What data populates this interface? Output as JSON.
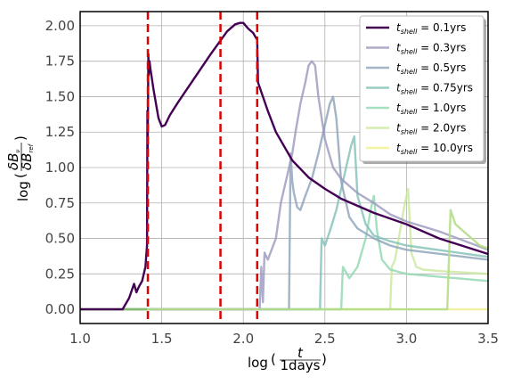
{
  "chart_data": {
    "type": "line",
    "title": "",
    "xlabel_main": "log",
    "xlabel_frac_num": "t",
    "xlabel_frac_den": "1days",
    "ylabel_main": "log",
    "ylabel_frac_num": "δB",
    "ylabel_frac_num_sub": "ν",
    "ylabel_frac_den": "δB",
    "ylabel_frac_den_sub": "ref",
    "xlim": [
      1.0,
      3.5
    ],
    "ylim": [
      -0.1,
      2.1
    ],
    "xticks": [
      1.0,
      1.5,
      2.0,
      2.5,
      3.0,
      3.5
    ],
    "yticks": [
      0.0,
      0.25,
      0.5,
      0.75,
      1.0,
      1.25,
      1.5,
      1.75,
      2.0
    ],
    "xtick_labels": [
      "1.0",
      "1.5",
      "2.0",
      "2.5",
      "3.0",
      "3.5"
    ],
    "ytick_labels": [
      "0.00",
      "0.25",
      "0.50",
      "0.75",
      "1.00",
      "1.25",
      "1.50",
      "1.75",
      "2.00"
    ],
    "grid": true,
    "legend_position": "top-right",
    "vlines": {
      "color": "#e00000",
      "style": "dashed",
      "x": [
        1.415,
        1.86,
        2.085
      ]
    },
    "legend_prefix": "t",
    "legend_sub": "shell",
    "series": [
      {
        "name": "= 0.1yrs",
        "color": "#440154",
        "opacity": 1.0,
        "x": [
          1.0,
          1.26,
          1.3,
          1.33,
          1.345,
          1.36,
          1.38,
          1.4,
          1.41,
          1.412,
          1.414,
          1.418,
          1.42,
          1.425,
          1.43,
          1.45,
          1.48,
          1.5,
          1.52,
          1.55,
          1.6,
          1.7,
          1.8,
          1.9,
          1.95,
          1.98,
          2.0,
          2.03,
          2.06,
          2.085,
          2.09,
          2.15,
          2.2,
          2.3,
          2.4,
          2.5,
          2.6,
          2.8,
          3.0,
          3.2,
          3.5
        ],
        "y": [
          0.0,
          0.0,
          0.08,
          0.18,
          0.12,
          0.16,
          0.2,
          0.3,
          0.45,
          1.4,
          1.1,
          1.8,
          1.65,
          1.75,
          1.7,
          1.55,
          1.35,
          1.29,
          1.3,
          1.37,
          1.46,
          1.63,
          1.8,
          1.96,
          2.01,
          2.02,
          2.02,
          1.98,
          1.95,
          1.9,
          1.6,
          1.4,
          1.25,
          1.05,
          0.93,
          0.85,
          0.78,
          0.68,
          0.6,
          0.5,
          0.39
        ]
      },
      {
        "name": "= 0.3yrs",
        "color": "#9a97bd",
        "opacity": 0.8,
        "x": [
          1.0,
          2.1,
          2.11,
          2.12,
          2.13,
          2.15,
          2.2,
          2.23,
          2.25,
          2.27,
          2.3,
          2.32,
          2.35,
          2.38,
          2.4,
          2.42,
          2.44,
          2.46,
          2.5,
          2.55,
          2.6,
          2.7,
          2.8,
          2.9,
          3.0,
          3.2,
          3.5
        ],
        "y": [
          0.0,
          0.0,
          0.3,
          0.05,
          0.4,
          0.35,
          0.5,
          0.75,
          0.85,
          0.95,
          1.1,
          1.25,
          1.45,
          1.6,
          1.72,
          1.75,
          1.72,
          1.5,
          1.2,
          1.0,
          0.92,
          0.82,
          0.75,
          0.67,
          0.62,
          0.55,
          0.42
        ]
      },
      {
        "name": "= 0.5yrs",
        "color": "#8ba1b8",
        "opacity": 0.8,
        "x": [
          1.0,
          2.28,
          2.29,
          2.3,
          2.31,
          2.33,
          2.35,
          2.38,
          2.42,
          2.46,
          2.5,
          2.53,
          2.55,
          2.57,
          2.6,
          2.65,
          2.7,
          2.8,
          2.9,
          3.0,
          3.5
        ],
        "y": [
          0.0,
          0.0,
          1.1,
          0.9,
          0.82,
          0.72,
          0.7,
          0.8,
          0.92,
          1.1,
          1.3,
          1.45,
          1.5,
          1.35,
          0.9,
          0.65,
          0.57,
          0.5,
          0.45,
          0.42,
          0.35
        ]
      },
      {
        "name": "= 0.75yrs",
        "color": "#7fbfb6",
        "opacity": 0.8,
        "x": [
          1.0,
          2.47,
          2.48,
          2.5,
          2.53,
          2.57,
          2.6,
          2.63,
          2.66,
          2.68,
          2.7,
          2.75,
          2.8,
          2.9,
          3.0,
          3.5
        ],
        "y": [
          0.0,
          0.0,
          0.5,
          0.45,
          0.55,
          0.7,
          0.85,
          1.0,
          1.15,
          1.22,
          0.8,
          0.6,
          0.52,
          0.48,
          0.45,
          0.37
        ]
      },
      {
        "name": "= 1.0yrs",
        "color": "#8fd7b0",
        "opacity": 0.8,
        "x": [
          1.0,
          2.6,
          2.61,
          2.65,
          2.7,
          2.75,
          2.78,
          2.8,
          2.82,
          2.85,
          2.9,
          3.0,
          3.5
        ],
        "y": [
          0.0,
          0.0,
          0.3,
          0.22,
          0.3,
          0.5,
          0.7,
          0.8,
          0.55,
          0.35,
          0.28,
          0.25,
          0.2
        ]
      },
      {
        "name": "= 2.0yrs",
        "color": "#c9e89a",
        "opacity": 0.8,
        "x": [
          1.0,
          2.9,
          2.91,
          2.93,
          2.96,
          2.99,
          3.01,
          3.03,
          3.06,
          3.1,
          3.2,
          3.5
        ],
        "y": [
          0.0,
          0.0,
          0.3,
          0.35,
          0.55,
          0.75,
          0.85,
          0.4,
          0.3,
          0.28,
          0.27,
          0.25
        ]
      },
      {
        "name": "= 10.0yrs",
        "color": "#f2f29a",
        "opacity": 0.9,
        "x": [
          1.0,
          3.5
        ],
        "y": [
          0.0,
          0.0
        ]
      }
    ],
    "extra_lines": [
      {
        "color": "#b5dd88",
        "opacity": 0.9,
        "x": [
          1.0,
          3.25,
          3.27,
          3.3,
          3.35,
          3.4,
          3.45,
          3.5
        ],
        "y": [
          0.0,
          0.0,
          0.7,
          0.6,
          0.55,
          0.5,
          0.45,
          0.43
        ]
      },
      {
        "color": "#7fb86a",
        "opacity": 0.9,
        "x": [
          1.0,
          1.41
        ],
        "y": [
          0.0,
          0.0
        ]
      }
    ]
  }
}
